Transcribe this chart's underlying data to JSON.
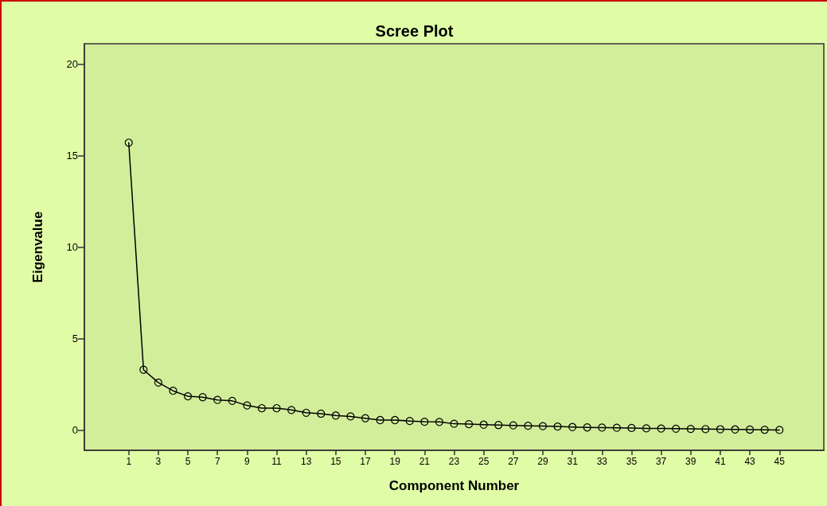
{
  "chart_data": {
    "type": "line",
    "title": "Scree Plot",
    "xlabel": "Component Number",
    "ylabel": "Eigenvalue",
    "x": [
      1,
      2,
      3,
      4,
      5,
      6,
      7,
      8,
      9,
      10,
      11,
      12,
      13,
      14,
      15,
      16,
      17,
      18,
      19,
      20,
      21,
      22,
      23,
      24,
      25,
      26,
      27,
      28,
      29,
      30,
      31,
      32,
      33,
      34,
      35,
      36,
      37,
      38,
      39,
      40,
      41,
      42,
      43,
      44,
      45
    ],
    "series": [
      {
        "color": "#000000",
        "values": [
          15.7,
          3.3,
          2.6,
          2.15,
          1.85,
          1.8,
          1.65,
          1.6,
          1.35,
          1.2,
          1.2,
          1.1,
          0.95,
          0.9,
          0.8,
          0.75,
          0.65,
          0.55,
          0.55,
          0.5,
          0.46,
          0.45,
          0.35,
          0.33,
          0.3,
          0.28,
          0.26,
          0.24,
          0.22,
          0.2,
          0.17,
          0.15,
          0.14,
          0.13,
          0.12,
          0.1,
          0.09,
          0.08,
          0.07,
          0.06,
          0.05,
          0.04,
          0.03,
          0.02,
          0.01
        ]
      }
    ],
    "xlim": [
      -2,
      48
    ],
    "xticks": [
      1,
      3,
      5,
      7,
      9,
      11,
      13,
      15,
      17,
      19,
      21,
      23,
      25,
      27,
      29,
      31,
      33,
      35,
      37,
      39,
      41,
      43,
      45
    ],
    "ylim": [
      -1.1,
      21.1
    ],
    "yticks": [
      0,
      5,
      10,
      15,
      20
    ],
    "grid": false,
    "marker": "circle",
    "line_style": "solid"
  }
}
